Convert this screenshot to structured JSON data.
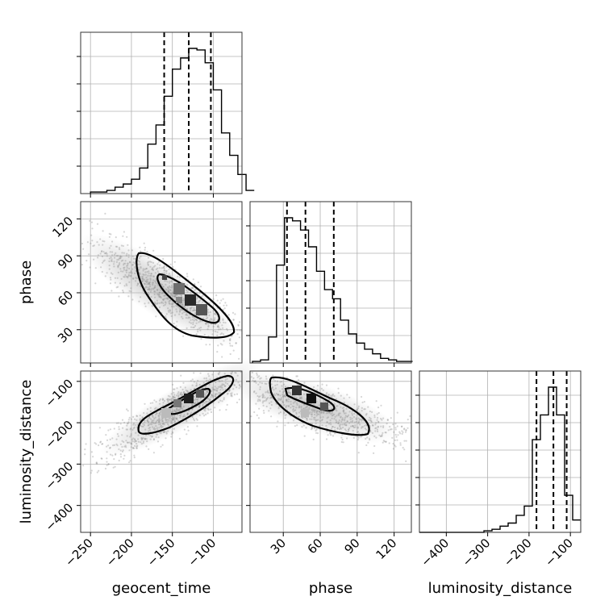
{
  "chart_data": {
    "type": "corner",
    "parameters": [
      "geocent_time",
      "phase",
      "luminosity_distance"
    ],
    "axes": {
      "geocent_time": {
        "label": "geocent_time",
        "ticks": [
          -250,
          -200,
          -150,
          -100
        ],
        "tick_labels": [
          "−250",
          "−200",
          "−150",
          "−100"
        ],
        "range": [
          -262,
          -65
        ]
      },
      "phase": {
        "label": "phase",
        "ticks": [
          30,
          60,
          90,
          120
        ],
        "tick_labels": [
          "30",
          "60",
          "90",
          "120"
        ],
        "range": [
          3,
          134
        ]
      },
      "luminosity_distance": {
        "label": "luminosity_distance",
        "ticks": [
          -400,
          -300,
          -200,
          -100
        ],
        "tick_labels": [
          "−400",
          "−300",
          "−200",
          "−100"
        ],
        "range": [
          -465,
          -75
        ]
      }
    },
    "quantiles": {
      "geocent_time": [
        -160,
        -130,
        -103
      ],
      "phase": [
        33,
        48,
        71
      ],
      "luminosity_distance": [
        -182,
        -141,
        -109
      ]
    },
    "histograms": {
      "geocent_time": {
        "bin_start": -250,
        "bin_width": 10,
        "counts": [
          1,
          1,
          2,
          4,
          6,
          9,
          16,
          31,
          43,
          61,
          78,
          85,
          91,
          90,
          82,
          65,
          38,
          24,
          12,
          2
        ]
      },
      "phase": {
        "bin_start": 5,
        "bin_width": 6.5,
        "counts": [
          1,
          2,
          17,
          64,
          95,
          93,
          87,
          76,
          60,
          48,
          42,
          28,
          19,
          13,
          9,
          6,
          3,
          2,
          1,
          1
        ]
      },
      "luminosity_distance": {
        "bin_start": -465,
        "bin_width": 19.5,
        "counts": [
          0,
          0,
          0,
          0,
          0,
          0,
          0,
          0,
          1,
          2,
          4,
          6,
          11,
          17,
          60,
          76,
          94,
          76,
          24,
          8
        ]
      }
    },
    "grid": true,
    "legend": "none"
  }
}
